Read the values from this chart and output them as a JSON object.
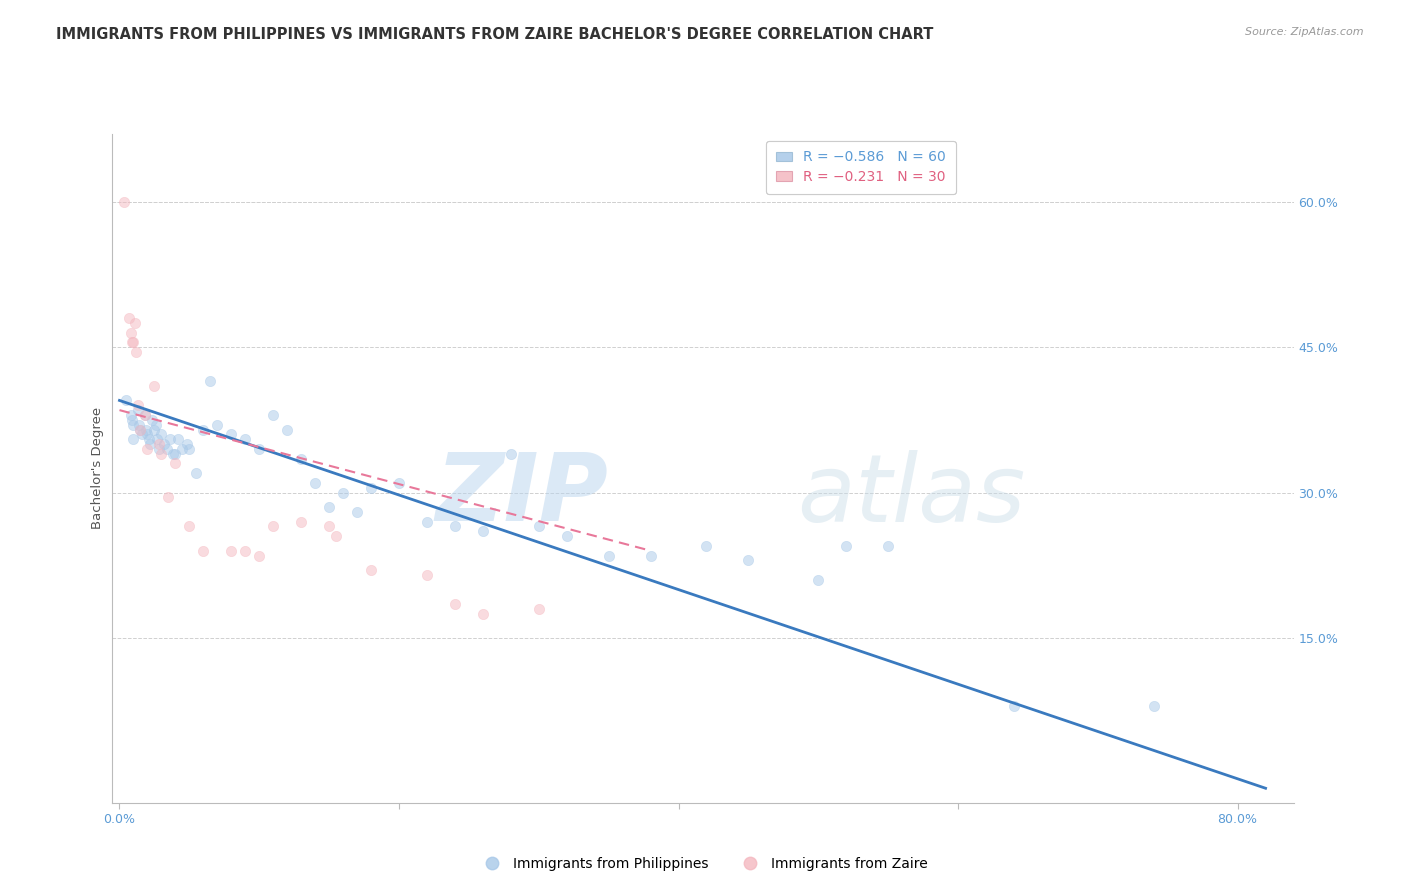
{
  "title": "IMMIGRANTS FROM PHILIPPINES VS IMMIGRANTS FROM ZAIRE BACHELOR'S DEGREE CORRELATION CHART",
  "source": "Source: ZipAtlas.com",
  "ylabel": "Bachelor's Degree",
  "x_tick_labels": [
    "0.0%",
    "",
    "",
    "",
    "80.0%"
  ],
  "x_tick_vals": [
    0.0,
    0.2,
    0.4,
    0.6,
    0.8
  ],
  "y_tick_labels": [
    "15.0%",
    "30.0%",
    "45.0%",
    "60.0%"
  ],
  "y_tick_vals": [
    0.15,
    0.3,
    0.45,
    0.6
  ],
  "xlim": [
    -0.005,
    0.84
  ],
  "ylim": [
    -0.02,
    0.67
  ],
  "blue_color": "#a8c8e8",
  "pink_color": "#f4b8c0",
  "blue_line_color": "#3a7abf",
  "pink_line_color": "#e8789a",
  "watermark_zip": "ZIP",
  "watermark_atlas": "atlas",
  "legend_blue_label": "R = −0.586   N = 60",
  "legend_pink_label": "R = −0.231   N = 30",
  "bottom_legend_blue": "Immigrants from Philippines",
  "bottom_legend_pink": "Immigrants from Zaire",
  "blue_scatter_x": [
    0.005,
    0.008,
    0.009,
    0.01,
    0.01,
    0.013,
    0.014,
    0.015,
    0.016,
    0.018,
    0.019,
    0.02,
    0.021,
    0.022,
    0.023,
    0.025,
    0.026,
    0.027,
    0.028,
    0.03,
    0.032,
    0.034,
    0.036,
    0.038,
    0.04,
    0.042,
    0.045,
    0.048,
    0.05,
    0.055,
    0.06,
    0.065,
    0.07,
    0.08,
    0.09,
    0.1,
    0.11,
    0.12,
    0.13,
    0.14,
    0.15,
    0.16,
    0.17,
    0.18,
    0.2,
    0.22,
    0.24,
    0.26,
    0.28,
    0.3,
    0.32,
    0.35,
    0.38,
    0.42,
    0.45,
    0.5,
    0.52,
    0.55,
    0.64,
    0.74
  ],
  "blue_scatter_y": [
    0.395,
    0.38,
    0.375,
    0.37,
    0.355,
    0.385,
    0.37,
    0.365,
    0.36,
    0.38,
    0.365,
    0.36,
    0.355,
    0.35,
    0.375,
    0.365,
    0.37,
    0.355,
    0.345,
    0.36,
    0.35,
    0.345,
    0.355,
    0.34,
    0.34,
    0.355,
    0.345,
    0.35,
    0.345,
    0.32,
    0.365,
    0.415,
    0.37,
    0.36,
    0.355,
    0.345,
    0.38,
    0.365,
    0.335,
    0.31,
    0.285,
    0.3,
    0.28,
    0.305,
    0.31,
    0.27,
    0.265,
    0.26,
    0.34,
    0.265,
    0.255,
    0.235,
    0.235,
    0.245,
    0.23,
    0.21,
    0.245,
    0.245,
    0.08,
    0.08
  ],
  "pink_scatter_x": [
    0.003,
    0.007,
    0.008,
    0.009,
    0.01,
    0.011,
    0.012,
    0.013,
    0.015,
    0.018,
    0.02,
    0.025,
    0.028,
    0.03,
    0.035,
    0.04,
    0.05,
    0.06,
    0.08,
    0.09,
    0.1,
    0.11,
    0.13,
    0.15,
    0.155,
    0.18,
    0.22,
    0.24,
    0.26,
    0.3
  ],
  "pink_scatter_y": [
    0.6,
    0.48,
    0.465,
    0.455,
    0.455,
    0.475,
    0.445,
    0.39,
    0.365,
    0.38,
    0.345,
    0.41,
    0.35,
    0.34,
    0.295,
    0.33,
    0.265,
    0.24,
    0.24,
    0.24,
    0.235,
    0.265,
    0.27,
    0.265,
    0.255,
    0.22,
    0.215,
    0.185,
    0.175,
    0.18
  ],
  "blue_line_x_start": 0.0,
  "blue_line_x_end": 0.82,
  "blue_line_y_start": 0.395,
  "blue_line_y_end": -0.005,
  "pink_line_x_start": 0.0,
  "pink_line_x_end": 0.38,
  "pink_line_y_start": 0.385,
  "pink_line_y_end": 0.24,
  "grid_color": "#d0d0d0",
  "background_color": "#ffffff",
  "title_fontsize": 10.5,
  "tick_fontsize": 9,
  "scatter_size": 55,
  "scatter_alpha": 0.5,
  "scatter_edge_alpha": 0.8
}
